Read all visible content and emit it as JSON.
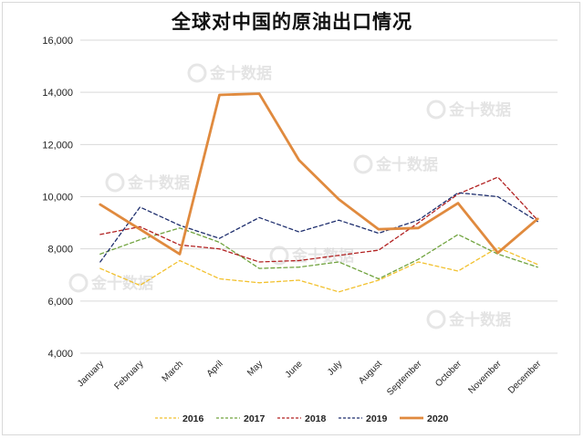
{
  "chart_data": {
    "type": "line",
    "title": "全球对中国的原油出口情况",
    "xlabel": "",
    "ylabel": "",
    "categories": [
      "January",
      "February",
      "March",
      "April",
      "May",
      "June",
      "July",
      "August",
      "September",
      "October",
      "November",
      "December"
    ],
    "ylim": [
      4000,
      16000
    ],
    "yticks": [
      4000,
      6000,
      8000,
      10000,
      12000,
      14000,
      16000
    ],
    "ytick_labels": [
      "4,000",
      "6,000",
      "8,000",
      "10,000",
      "12,000",
      "14,000",
      "16,000"
    ],
    "grid": "horizontal",
    "legend_position": "bottom",
    "series": [
      {
        "name": "2016",
        "color": "#f2c12e",
        "dash": true,
        "values": [
          7250,
          6600,
          7550,
          6850,
          6700,
          6800,
          6350,
          6800,
          7500,
          7150,
          8050,
          7400
        ]
      },
      {
        "name": "2017",
        "color": "#70a33e",
        "dash": true,
        "values": [
          7800,
          8350,
          8800,
          8250,
          7250,
          7300,
          7500,
          6850,
          7600,
          8550,
          7800,
          7300
        ]
      },
      {
        "name": "2018",
        "color": "#b22222",
        "dash": true,
        "values": [
          8550,
          8850,
          8150,
          8000,
          7500,
          7550,
          7750,
          7950,
          9000,
          10100,
          10750,
          9100
        ]
      },
      {
        "name": "2019",
        "color": "#1f2f6e",
        "dash": true,
        "values": [
          7500,
          9600,
          8900,
          8400,
          9200,
          8650,
          9100,
          8600,
          9100,
          10150,
          10000,
          9050
        ]
      },
      {
        "name": "2020",
        "color": "#e08a3e",
        "dash": false,
        "values": [
          9700,
          8750,
          7800,
          13900,
          13950,
          11400,
          9900,
          8750,
          8800,
          9750,
          7850,
          9150
        ]
      }
    ]
  },
  "watermark": "金十数据"
}
